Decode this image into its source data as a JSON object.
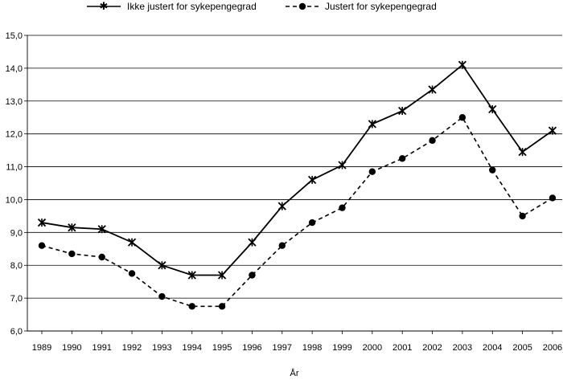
{
  "chart_data": {
    "type": "line",
    "title": "",
    "xlabel": "År",
    "ylabel": "",
    "x": [
      "1989",
      "1990",
      "1991",
      "1992",
      "1993",
      "1994",
      "1995",
      "1996",
      "1997",
      "1998",
      "1999",
      "2000",
      "2001",
      "2002",
      "2003",
      "2004",
      "2005",
      "2006"
    ],
    "ylim": [
      6.0,
      15.0
    ],
    "yticks": [
      "6,0",
      "7,0",
      "8,0",
      "9,0",
      "10,0",
      "11,0",
      "12,0",
      "13,0",
      "14,0",
      "15,0"
    ],
    "grid": true,
    "legend_position": "top",
    "series": [
      {
        "name": "Ikke justert for sykepengegrad",
        "style": "solid",
        "marker": "star",
        "color": "#000000",
        "values": [
          9.3,
          9.15,
          9.1,
          8.7,
          8.0,
          7.7,
          7.7,
          8.7,
          9.8,
          10.6,
          11.05,
          12.3,
          12.7,
          13.35,
          14.1,
          12.75,
          11.45,
          12.1
        ]
      },
      {
        "name": "Justert for sykepengegrad",
        "style": "dashed",
        "marker": "circle",
        "color": "#000000",
        "values": [
          8.6,
          8.35,
          8.25,
          7.75,
          7.05,
          6.75,
          6.75,
          7.7,
          8.6,
          9.3,
          9.75,
          10.85,
          11.25,
          11.8,
          12.5,
          10.9,
          9.5,
          10.05
        ]
      }
    ]
  }
}
